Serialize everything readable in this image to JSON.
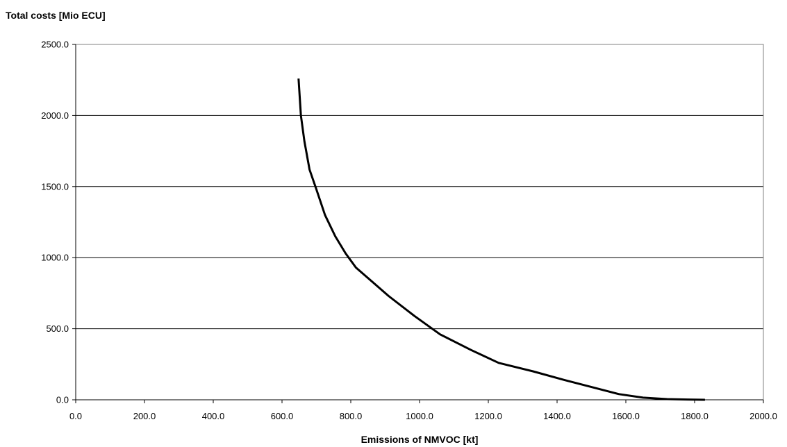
{
  "chart_data": {
    "type": "line",
    "title": "",
    "xlabel": "Emissions of NMVOC [kt]",
    "ylabel": "Total costs [Mio ECU]",
    "xlim": [
      0,
      2000
    ],
    "ylim": [
      0,
      2500
    ],
    "x_ticks": [
      "0.0",
      "200.0",
      "400.0",
      "600.0",
      "800.0",
      "1000.0",
      "1200.0",
      "1400.0",
      "1600.0",
      "1800.0",
      "2000.0"
    ],
    "y_ticks": [
      "0.0",
      "500.0",
      "1000.0",
      "1500.0",
      "2000.0",
      "2500.0"
    ],
    "grid": "horizontal",
    "legend": "none",
    "line_color": "#000000",
    "series": [
      {
        "x": [
          648,
          655,
          665,
          680,
          700,
          725,
          755,
          785,
          815,
          858,
          910,
          985,
          1060,
          1150,
          1230,
          1330,
          1420,
          1500,
          1580,
          1650,
          1720,
          1780,
          1830
        ],
        "y": [
          2260,
          2000,
          1820,
          1620,
          1480,
          1300,
          1150,
          1030,
          930,
          840,
          730,
          590,
          460,
          350,
          260,
          200,
          140,
          90,
          40,
          15,
          5,
          2,
          0
        ]
      }
    ]
  }
}
